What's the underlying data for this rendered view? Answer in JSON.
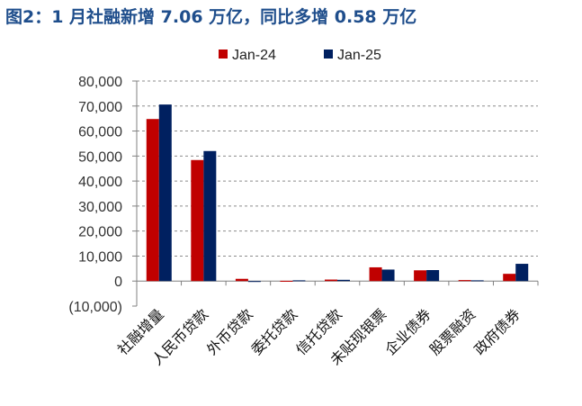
{
  "title": "图2：1 月社融新增 7.06 万亿，同比多增 0.58 万亿",
  "chart_data": {
    "type": "bar",
    "title": "图2：1 月社融新增 7.06 万亿，同比多增 0.58 万亿",
    "categories": [
      "社融增量",
      "人民币贷款",
      "外币贷款",
      "委托贷款",
      "信托贷款",
      "未贴现银票",
      "企业债券",
      "股票融资",
      "政府债券"
    ],
    "series": [
      {
        "name": "Jan-24",
        "color": "#c00000",
        "values": [
          64800,
          48400,
          900,
          100,
          600,
          5500,
          4300,
          400,
          2900
        ]
      },
      {
        "name": "Jan-25",
        "color": "#002060",
        "values": [
          70600,
          52000,
          -200,
          300,
          500,
          4600,
          4400,
          300,
          6900
        ]
      }
    ],
    "ylim": [
      -10000,
      80000
    ],
    "yticks": [
      -10000,
      0,
      10000,
      20000,
      30000,
      40000,
      50000,
      60000,
      70000,
      80000
    ],
    "ytick_labels": [
      "(10,000)",
      "0",
      "10,000",
      "20,000",
      "30,000",
      "40,000",
      "50,000",
      "60,000",
      "70,000",
      "80,000"
    ],
    "negative_tick_color": "#ff0000",
    "grid": true,
    "legend_position": "top",
    "xlabel": "",
    "ylabel": ""
  }
}
